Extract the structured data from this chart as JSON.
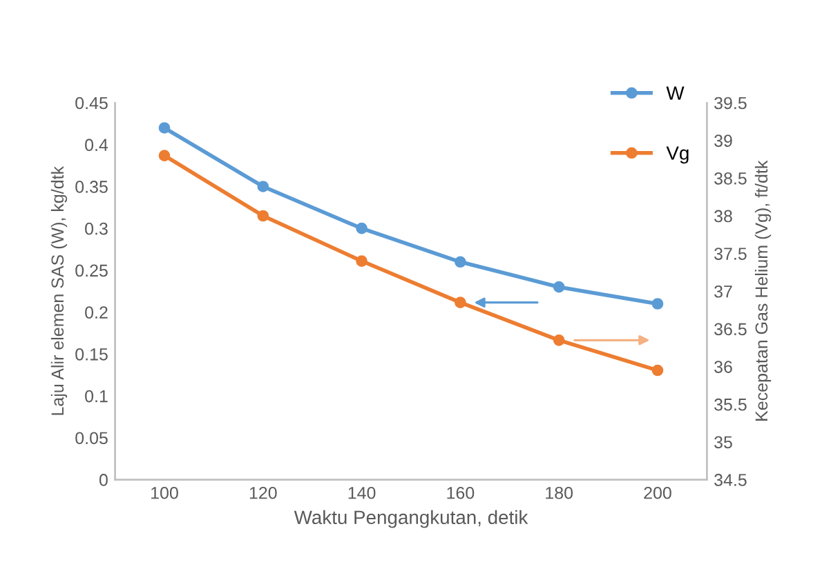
{
  "chart_data": {
    "type": "line",
    "xlabel": "Waktu Pengangkutan, detik",
    "ylabel": "Laju Alir elemen SAS (W), kg/dtk",
    "y2label": "Kecepatan Gas Helium (Vg), ft/dtk",
    "x": [
      100,
      120,
      140,
      160,
      180,
      200
    ],
    "series": [
      {
        "name": "W",
        "color": "#5b9bd5",
        "values": [
          0.42,
          0.35,
          0.3,
          0.26,
          0.23,
          0.21
        ]
      },
      {
        "name": "Vg",
        "color": "#ed7d31",
        "axis": "y2",
        "values": [
          38.8,
          38.0,
          37.4,
          36.85,
          36.35,
          35.95
        ]
      }
    ],
    "xlim": [
      90,
      210
    ],
    "xticks": [
      100,
      120,
      140,
      160,
      180,
      200
    ],
    "ylim": [
      0,
      0.45
    ],
    "yticks": [
      0,
      0.05,
      0.1,
      0.15,
      0.2,
      0.25,
      0.3,
      0.35,
      0.4,
      0.45
    ],
    "y2lim": [
      34.5,
      39.5
    ],
    "y2ticks": [
      34.5,
      35,
      35.5,
      36,
      36.5,
      37,
      37.5,
      38,
      38.5,
      39,
      39.5
    ],
    "marker": "circle",
    "legend": "top right",
    "grid": false
  }
}
